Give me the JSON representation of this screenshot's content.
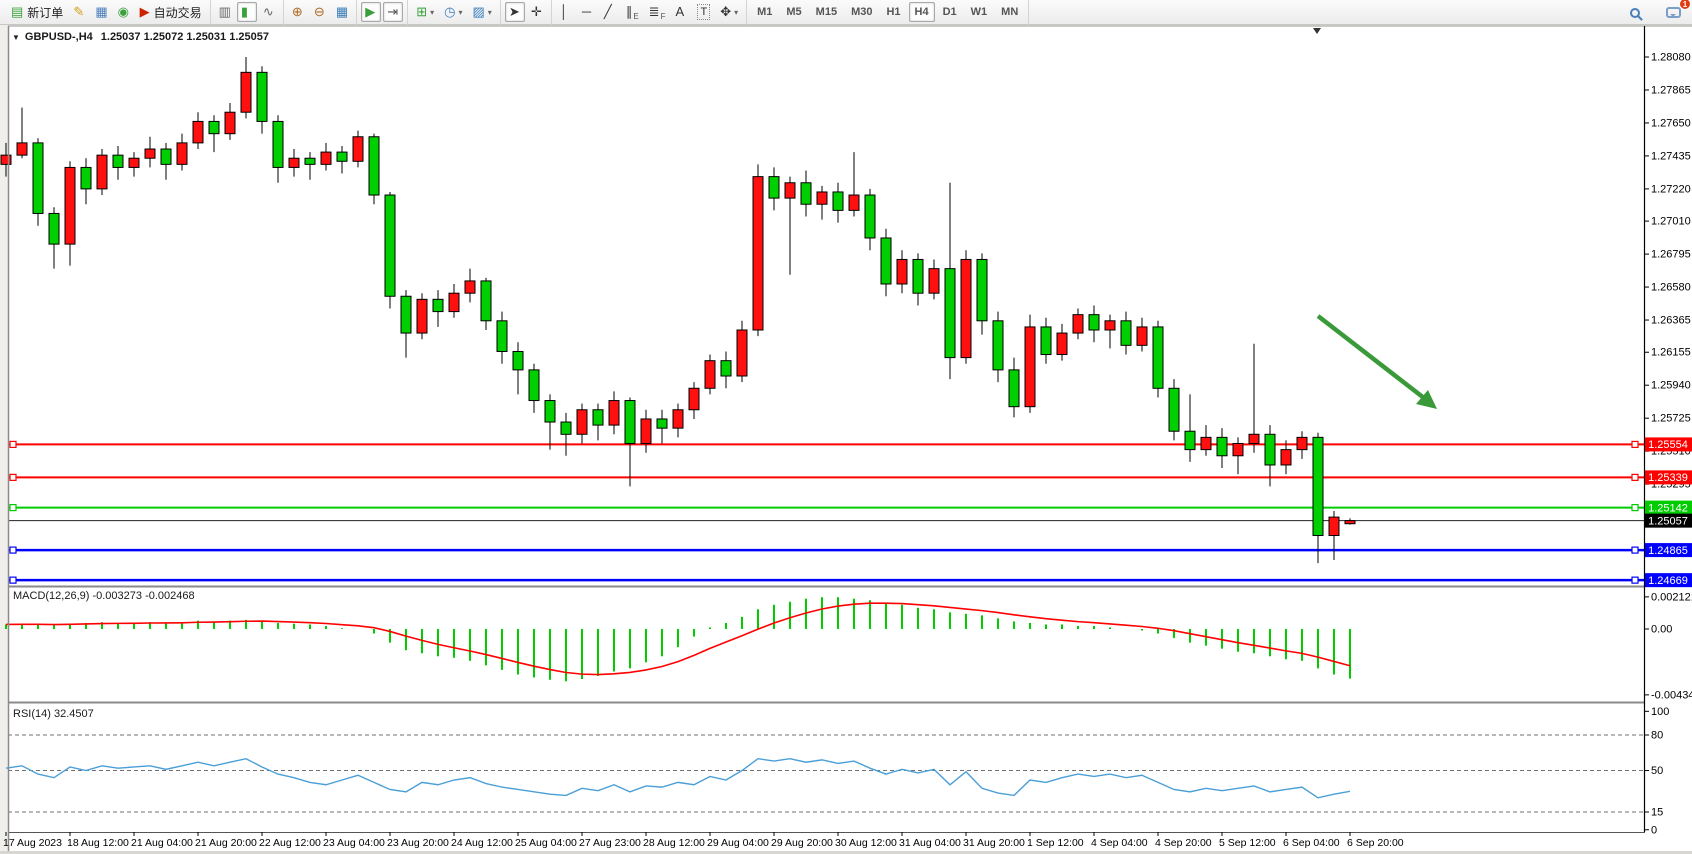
{
  "toolbar": {
    "groups": [
      {
        "name": "trade",
        "items": [
          {
            "name": "new-order-button",
            "glyph": "▤",
            "color": "#3aa03a",
            "label": "新订单"
          },
          {
            "name": "styles-button",
            "glyph": "✎",
            "color": "#d4a017"
          },
          {
            "name": "profiles-button",
            "glyph": "▦",
            "color": "#4a7ebb"
          },
          {
            "name": "signals-button",
            "glyph": "◉",
            "color": "#3aa03a"
          },
          {
            "name": "auto-trading-button",
            "glyph": "▶",
            "color": "#cc2200",
            "label": "自动交易"
          }
        ]
      },
      {
        "name": "chart-modes",
        "items": [
          {
            "name": "bar-chart-button",
            "glyph": "▥",
            "color": "#666"
          },
          {
            "name": "candlestick-chart-button",
            "glyph": "▮",
            "color": "#3aa03a",
            "active": true
          },
          {
            "name": "line-chart-button",
            "glyph": "∿",
            "color": "#666"
          }
        ]
      },
      {
        "name": "zoom",
        "items": [
          {
            "name": "zoom-in-button",
            "glyph": "⊕",
            "color": "#b06820"
          },
          {
            "name": "zoom-out-button",
            "glyph": "⊖",
            "color": "#b06820"
          },
          {
            "name": "tile-windows-button",
            "glyph": "▦",
            "color": "#3a7ebb"
          }
        ]
      },
      {
        "name": "scroll",
        "items": [
          {
            "name": "auto-scroll-button",
            "glyph": "▶",
            "color": "#3aa03a",
            "active": true
          },
          {
            "name": "chart-shift-button",
            "glyph": "⇥",
            "color": "#555",
            "active": true
          }
        ]
      },
      {
        "name": "objects",
        "items": [
          {
            "name": "indicators-button",
            "glyph": "⊞",
            "color": "#3aa03a",
            "dropdown": true
          },
          {
            "name": "periods-button",
            "glyph": "◷",
            "color": "#3a7ebb",
            "dropdown": true
          },
          {
            "name": "templates-button",
            "glyph": "▨",
            "color": "#3a7ebb",
            "dropdown": true
          }
        ]
      },
      {
        "name": "cursor",
        "items": [
          {
            "name": "cursor-button",
            "glyph": "➤",
            "color": "#333",
            "active": true
          },
          {
            "name": "crosshair-button",
            "glyph": "✛",
            "color": "#333"
          }
        ]
      },
      {
        "name": "draw",
        "items": [
          {
            "name": "vertical-line-button",
            "glyph": "│",
            "color": "#333"
          },
          {
            "name": "horizontal-line-button",
            "glyph": "─",
            "color": "#333"
          },
          {
            "name": "trendline-button",
            "glyph": "╱",
            "color": "#333"
          },
          {
            "name": "equidistant-channel-button",
            "glyph": "∥",
            "color": "#333",
            "sub": "E"
          },
          {
            "name": "fibonacci-button",
            "glyph": "≣",
            "color": "#333",
            "sub": "F"
          },
          {
            "name": "text-button",
            "glyph": "A",
            "color": "#333"
          },
          {
            "name": "text-label-button",
            "glyph": "T",
            "color": "#333",
            "boxed": true
          },
          {
            "name": "arrows-button",
            "glyph": "✥",
            "color": "#333",
            "dropdown": true
          }
        ]
      }
    ],
    "timeframes": {
      "items": [
        "M1",
        "M5",
        "M15",
        "M30",
        "H1",
        "H4",
        "D1",
        "W1",
        "MN"
      ],
      "active": "H4"
    },
    "notification_badge": "1"
  },
  "chart": {
    "symbol_title": "GBPUSD-,H4",
    "ohlc_title": "1.25037  1.25072  1.25031  1.25057",
    "price_axis_ticks": [
      "1.28080",
      "1.27865",
      "1.27650",
      "1.27435",
      "1.27220",
      "1.27010",
      "1.26795",
      "1.26580",
      "1.26365",
      "1.26155",
      "1.25940",
      "1.25725",
      "1.25510",
      "1.25295",
      "1.25080",
      "1.24865",
      "1.24650"
    ],
    "price_tags": [
      {
        "value": "1.25554",
        "color": "#ff0000"
      },
      {
        "value": "1.25339",
        "color": "#ff0000"
      },
      {
        "value": "1.25142",
        "color": "#00cc00"
      },
      {
        "value": "1.25057",
        "color": "#000000"
      },
      {
        "value": "1.24865",
        "color": "#0000ff"
      },
      {
        "value": "1.24669",
        "color": "#0000ff"
      }
    ]
  },
  "chart_data": [
    {
      "type": "candlestick",
      "symbol": "GBPUSD-",
      "timeframe": "H4",
      "up_color": "#ff1010",
      "down_color": "#00d000",
      "outline_color": "#000000",
      "x_labels": [
        "17 Aug 2023",
        "18 Aug 12:00",
        "21 Aug 04:00",
        "21 Aug 20:00",
        "22 Aug 12:00",
        "23 Aug 04:00",
        "23 Aug 20:00",
        "24 Aug 12:00",
        "25 Aug 04:00",
        "27 Aug 23:00",
        "28 Aug 12:00",
        "29 Aug 04:00",
        "29 Aug 20:00",
        "30 Aug 12:00",
        "31 Aug 04:00",
        "31 Aug 20:00",
        "1 Sep 12:00",
        "4 Sep 04:00",
        "4 Sep 20:00",
        "5 Sep 12:00",
        "6 Sep 04:00",
        "6 Sep 20:00"
      ],
      "ylim": [
        1.2465,
        1.28152
      ],
      "candles": [
        [
          1.2738,
          1.2752,
          1.273,
          1.2744
        ],
        [
          1.2744,
          1.2775,
          1.2742,
          1.2752
        ],
        [
          1.2752,
          1.2755,
          1.2698,
          1.2706
        ],
        [
          1.2706,
          1.271,
          1.267,
          1.2686
        ],
        [
          1.2686,
          1.274,
          1.2672,
          1.2736
        ],
        [
          1.2736,
          1.2742,
          1.2712,
          1.2722
        ],
        [
          1.2722,
          1.2748,
          1.2718,
          1.2744
        ],
        [
          1.2744,
          1.275,
          1.2728,
          1.2736
        ],
        [
          1.2736,
          1.2746,
          1.273,
          1.2742
        ],
        [
          1.2742,
          1.2756,
          1.2736,
          1.2748
        ],
        [
          1.2748,
          1.2752,
          1.2728,
          1.2738
        ],
        [
          1.2738,
          1.2758,
          1.2734,
          1.2752
        ],
        [
          1.2752,
          1.2772,
          1.2748,
          1.2766
        ],
        [
          1.2766,
          1.277,
          1.2746,
          1.2758
        ],
        [
          1.2758,
          1.2778,
          1.2754,
          1.2772
        ],
        [
          1.2772,
          1.2808,
          1.2768,
          1.2798
        ],
        [
          1.2798,
          1.2802,
          1.2758,
          1.2766
        ],
        [
          1.2766,
          1.277,
          1.2726,
          1.2736
        ],
        [
          1.2736,
          1.2748,
          1.273,
          1.2742
        ],
        [
          1.2742,
          1.2746,
          1.2728,
          1.2738
        ],
        [
          1.2738,
          1.2752,
          1.2734,
          1.2746
        ],
        [
          1.2746,
          1.275,
          1.2732,
          1.274
        ],
        [
          1.274,
          1.276,
          1.2736,
          1.2756
        ],
        [
          1.2756,
          1.2758,
          1.2712,
          1.2718
        ],
        [
          1.2718,
          1.272,
          1.2644,
          1.2652
        ],
        [
          1.2652,
          1.2656,
          1.2612,
          1.2628
        ],
        [
          1.2628,
          1.2654,
          1.2624,
          1.265
        ],
        [
          1.265,
          1.2656,
          1.2632,
          1.2642
        ],
        [
          1.2642,
          1.266,
          1.2638,
          1.2654
        ],
        [
          1.2654,
          1.267,
          1.2648,
          1.2662
        ],
        [
          1.2662,
          1.2664,
          1.263,
          1.2636
        ],
        [
          1.2636,
          1.2642,
          1.2608,
          1.2616
        ],
        [
          1.2616,
          1.2622,
          1.2588,
          1.2604
        ],
        [
          1.2604,
          1.2608,
          1.2576,
          1.2584
        ],
        [
          1.2584,
          1.2588,
          1.2552,
          1.257
        ],
        [
          1.257,
          1.2576,
          1.2548,
          1.2562
        ],
        [
          1.2562,
          1.2582,
          1.2556,
          1.2578
        ],
        [
          1.2578,
          1.2582,
          1.2558,
          1.2568
        ],
        [
          1.2568,
          1.259,
          1.2562,
          1.2584
        ],
        [
          1.2584,
          1.2586,
          1.2528,
          1.2556
        ],
        [
          1.2556,
          1.2578,
          1.255,
          1.2572
        ],
        [
          1.2572,
          1.2578,
          1.2556,
          1.2566
        ],
        [
          1.2566,
          1.2582,
          1.256,
          1.2578
        ],
        [
          1.2578,
          1.2596,
          1.2572,
          1.2592
        ],
        [
          1.2592,
          1.2614,
          1.2588,
          1.261
        ],
        [
          1.261,
          1.2616,
          1.2592,
          1.26
        ],
        [
          1.26,
          1.2636,
          1.2596,
          1.263
        ],
        [
          1.263,
          1.2738,
          1.2626,
          1.273
        ],
        [
          1.273,
          1.2736,
          1.2708,
          1.2716
        ],
        [
          1.2716,
          1.273,
          1.2666,
          1.2726
        ],
        [
          1.2726,
          1.2734,
          1.2704,
          1.2712
        ],
        [
          1.2712,
          1.2724,
          1.2702,
          1.272
        ],
        [
          1.272,
          1.2726,
          1.27,
          1.2708
        ],
        [
          1.2708,
          1.2746,
          1.2704,
          1.2718
        ],
        [
          1.2718,
          1.2722,
          1.2682,
          1.269
        ],
        [
          1.269,
          1.2696,
          1.2652,
          1.266
        ],
        [
          1.266,
          1.2682,
          1.2654,
          1.2676
        ],
        [
          1.2676,
          1.268,
          1.2646,
          1.2654
        ],
        [
          1.2654,
          1.2676,
          1.265,
          1.267
        ],
        [
          1.267,
          1.2726,
          1.2598,
          1.2612
        ],
        [
          1.2612,
          1.2682,
          1.2608,
          1.2676
        ],
        [
          1.2676,
          1.268,
          1.2627,
          1.2636
        ],
        [
          1.2636,
          1.2642,
          1.2596,
          1.2604
        ],
        [
          1.2604,
          1.2612,
          1.2573,
          1.258
        ],
        [
          1.258,
          1.264,
          1.2576,
          1.2632
        ],
        [
          1.2632,
          1.2638,
          1.2608,
          1.2614
        ],
        [
          1.2614,
          1.2634,
          1.261,
          1.2628
        ],
        [
          1.2628,
          1.2644,
          1.2624,
          1.264
        ],
        [
          1.264,
          1.2646,
          1.2622,
          1.263
        ],
        [
          1.263,
          1.264,
          1.2618,
          1.2636
        ],
        [
          1.2636,
          1.2642,
          1.2614,
          1.262
        ],
        [
          1.262,
          1.2638,
          1.2616,
          1.2632
        ],
        [
          1.2632,
          1.2636,
          1.2586,
          1.2592
        ],
        [
          1.2592,
          1.2598,
          1.2558,
          1.2564
        ],
        [
          1.2564,
          1.2588,
          1.2544,
          1.2552
        ],
        [
          1.2552,
          1.2568,
          1.2548,
          1.256
        ],
        [
          1.256,
          1.2566,
          1.254,
          1.2548
        ],
        [
          1.2548,
          1.256,
          1.2536,
          1.2556
        ],
        [
          1.2556,
          1.2621,
          1.255,
          1.2562
        ],
        [
          1.2562,
          1.2568,
          1.2528,
          1.2542
        ],
        [
          1.2542,
          1.2558,
          1.2536,
          1.2552
        ],
        [
          1.2552,
          1.2564,
          1.2546,
          1.256
        ],
        [
          1.256,
          1.2563,
          1.2478,
          1.2496
        ],
        [
          1.2496,
          1.2512,
          1.248,
          1.2508
        ],
        [
          1.25037,
          1.25072,
          1.25031,
          1.25057
        ]
      ],
      "hlines": [
        {
          "price": 1.25554,
          "color": "#ff0000",
          "width": 2
        },
        {
          "price": 1.25339,
          "color": "#ff0000",
          "width": 2
        },
        {
          "price": 1.25142,
          "color": "#00cc00",
          "width": 2
        },
        {
          "price": 1.24865,
          "color": "#0000ff",
          "width": 2.5
        },
        {
          "price": 1.24669,
          "color": "#0000ff",
          "width": 2.5
        }
      ],
      "current_price": 1.25057,
      "arrow_annotation": {
        "color": "#3a9a3a",
        "from": [
          1318,
          316
        ],
        "to": [
          1424,
          398
        ],
        "head": [
          [
            1437,
            409
          ],
          [
            1416,
            404
          ],
          [
            1428,
            390
          ]
        ]
      }
    },
    {
      "type": "bar",
      "name": "MACD",
      "label": "MACD(12,26,9) -0.003273 -0.002468",
      "main_value": "-0.003273",
      "signal_value": "-0.002468",
      "histogram_color": "#00cc00",
      "signal_color": "#ff0000",
      "y_ticks": [
        {
          "label": "0.002121",
          "value": 0.002121
        },
        {
          "label": "0.00",
          "value": 0
        },
        {
          "label": "-0.004348",
          "value": -0.004348
        }
      ],
      "values": [
        0.0003,
        0.00035,
        0.0003,
        0.00025,
        0.00035,
        0.0004,
        0.00045,
        0.0004,
        0.0004,
        0.00045,
        0.0004,
        0.00045,
        0.00055,
        0.0005,
        0.00055,
        0.0006,
        0.00055,
        0.0004,
        0.00035,
        0.0003,
        0.0002,
        5e-05,
        0.0,
        -0.0003,
        -0.0009,
        -0.0014,
        -0.0016,
        -0.0018,
        -0.0019,
        -0.0021,
        -0.0024,
        -0.0027,
        -0.003,
        -0.0032,
        -0.00335,
        -0.00345,
        -0.0033,
        -0.0031,
        -0.0028,
        -0.0026,
        -0.0022,
        -0.0018,
        -0.0012,
        -0.0005,
        0.0001,
        0.0004,
        0.0008,
        0.0013,
        0.0016,
        0.0018,
        0.002,
        0.0021,
        0.0021,
        0.002,
        0.0019,
        0.0017,
        0.0016,
        0.0014,
        0.0013,
        0.0011,
        0.001,
        0.0009,
        0.0007,
        0.0005,
        0.0004,
        0.0003,
        0.0003,
        0.0002,
        0.0002,
        0.0001,
        0.0,
        -0.0001,
        -0.0003,
        -0.0006,
        -0.0009,
        -0.0011,
        -0.0013,
        -0.0015,
        -0.0016,
        -0.0018,
        -0.002,
        -0.0021,
        -0.0026,
        -0.003,
        -0.003273
      ]
    },
    {
      "type": "line",
      "name": "RSI",
      "label": "RSI(14) 32.4507",
      "value": "32.4507",
      "line_color": "#4a9fd8",
      "levels": [
        80,
        50,
        15
      ],
      "y_ticks": [
        {
          "label": "100",
          "value": 100
        },
        {
          "label": "80",
          "value": 80
        },
        {
          "label": "50",
          "value": 50
        },
        {
          "label": "15",
          "value": 15
        },
        {
          "label": "0",
          "value": 0
        }
      ],
      "values": [
        52,
        54,
        47,
        44,
        53,
        50,
        54,
        52,
        53,
        54,
        51,
        54,
        57,
        54,
        57,
        60,
        53,
        47,
        44,
        40,
        38,
        42,
        46,
        40,
        34,
        32,
        40,
        38,
        42,
        44,
        39,
        36,
        34,
        32,
        30,
        29,
        35,
        33,
        38,
        32,
        37,
        36,
        40,
        38,
        45,
        42,
        50,
        60,
        58,
        60,
        57,
        59,
        56,
        58,
        52,
        47,
        51,
        48,
        51,
        38,
        49,
        35,
        31,
        29,
        42,
        40,
        44,
        47,
        45,
        47,
        44,
        46,
        40,
        34,
        32,
        35,
        33,
        35,
        37,
        32,
        34,
        36,
        27,
        30,
        32.4507
      ]
    }
  ]
}
